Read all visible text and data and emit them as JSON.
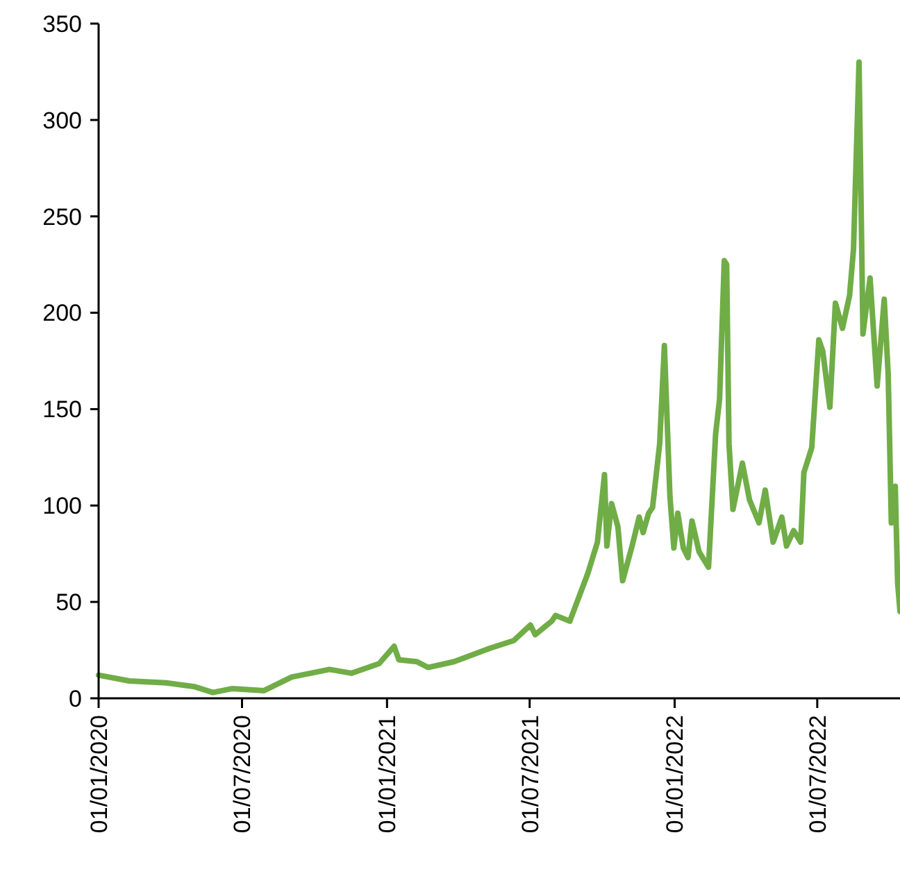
{
  "chart_data": {
    "type": "line",
    "xlim": [
      "2020-01-01",
      "2022-10-14"
    ],
    "xticks": [
      {
        "value": "2020-01-01",
        "label": "01/01/2020"
      },
      {
        "value": "2020-07-01",
        "label": "01/07/2020"
      },
      {
        "value": "2021-01-01",
        "label": "01/01/2021"
      },
      {
        "value": "2021-07-01",
        "label": "01/07/2021"
      },
      {
        "value": "2022-01-01",
        "label": "01/01/2022"
      },
      {
        "value": "2022-07-01",
        "label": "01/07/2022"
      }
    ],
    "ylim": [
      0,
      350
    ],
    "yticks": [
      0,
      50,
      100,
      150,
      200,
      250,
      300,
      350
    ],
    "grid": false,
    "marker": "none",
    "line_style": "solid",
    "series": [
      {
        "color": "#70ad47",
        "x": [
          "2020-01-01",
          "2020-02-09",
          "2020-03-27",
          "2020-05-02",
          "2020-05-25",
          "2020-06-18",
          "2020-07-29",
          "2020-09-02",
          "2020-10-20",
          "2020-11-17",
          "2020-12-22",
          "2021-01-10",
          "2021-01-16",
          "2021-02-08",
          "2021-02-22",
          "2021-03-27",
          "2021-05-12",
          "2021-06-11",
          "2021-07-02",
          "2021-07-08",
          "2021-07-29",
          "2021-08-03",
          "2021-08-21",
          "2021-09-13",
          "2021-09-25",
          "2021-10-04",
          "2021-10-07",
          "2021-10-13",
          "2021-10-21",
          "2021-10-27",
          "2021-11-08",
          "2021-11-17",
          "2021-11-22",
          "2021-11-29",
          "2021-12-04",
          "2021-12-13",
          "2021-12-19",
          "2021-12-26",
          "2021-12-31",
          "2022-01-05",
          "2022-01-12",
          "2022-01-18",
          "2022-01-23",
          "2022-02-01",
          "2022-02-13",
          "2022-02-22",
          "2022-02-27",
          "2022-03-05",
          "2022-03-08",
          "2022-03-11",
          "2022-03-16",
          "2022-03-28",
          "2022-04-06",
          "2022-04-18",
          "2022-04-26",
          "2022-05-06",
          "2022-05-17",
          "2022-05-23",
          "2022-06-01",
          "2022-06-10",
          "2022-06-14",
          "2022-06-24",
          "2022-07-03",
          "2022-07-08",
          "2022-07-17",
          "2022-07-24",
          "2022-08-02",
          "2022-08-11",
          "2022-08-16",
          "2022-08-23",
          "2022-08-28",
          "2022-09-06",
          "2022-09-15",
          "2022-09-24",
          "2022-09-29",
          "2022-10-03",
          "2022-10-08",
          "2022-10-11",
          "2022-10-14"
        ],
        "values": [
          12,
          9,
          8,
          6,
          3,
          5,
          4,
          11,
          15,
          13,
          18,
          27,
          20,
          19,
          16,
          19,
          26,
          30,
          38,
          33,
          40,
          43,
          40,
          65,
          81,
          116,
          79,
          101,
          89,
          61,
          79,
          94,
          86,
          96,
          99,
          132,
          183,
          105,
          78,
          96,
          78,
          73,
          92,
          76,
          68,
          137,
          155,
          227,
          225,
          132,
          98,
          122,
          103,
          91,
          108,
          81,
          94,
          79,
          87,
          81,
          117,
          130,
          186,
          180,
          151,
          205,
          192,
          209,
          233,
          330,
          189,
          218,
          162,
          207,
          168,
          91,
          110,
          60,
          45
        ]
      }
    ]
  }
}
